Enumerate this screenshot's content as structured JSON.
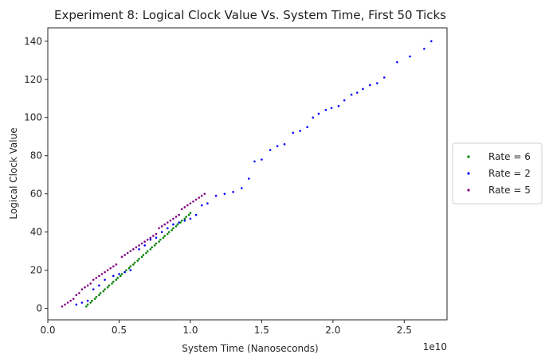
{
  "chart_data": {
    "type": "scatter",
    "title": "Experiment 8: Logical Clock Value Vs. System Time, First 50 Ticks",
    "xlabel": "System Time (Nanoseconds)",
    "ylabel": "Logical Clock Value",
    "x_offset_label": "1e10",
    "xlim": [
      0.0,
      2.8
    ],
    "ylim": [
      -6,
      147
    ],
    "x_ticks": [
      0.0,
      0.5,
      1.0,
      1.5,
      2.0,
      2.5
    ],
    "x_tick_labels": [
      "0.0",
      "0.5",
      "1.0",
      "1.5",
      "2.0",
      "2.5"
    ],
    "y_ticks": [
      0,
      20,
      40,
      60,
      80,
      100,
      120,
      140
    ],
    "y_tick_labels": [
      "0",
      "20",
      "40",
      "60",
      "80",
      "100",
      "120",
      "140"
    ],
    "grid": false,
    "legend_placement": "right, outside plot",
    "series": [
      {
        "name": "Rate = 6",
        "color": "#008000",
        "points": [
          [
            0.27,
            1
          ],
          [
            0.28,
            2
          ],
          [
            0.3,
            3
          ],
          [
            0.31,
            4
          ],
          [
            0.33,
            5
          ],
          [
            0.34,
            6
          ],
          [
            0.36,
            7
          ],
          [
            0.37,
            8
          ],
          [
            0.39,
            9
          ],
          [
            0.4,
            10
          ],
          [
            0.42,
            11
          ],
          [
            0.43,
            12
          ],
          [
            0.45,
            13
          ],
          [
            0.46,
            14
          ],
          [
            0.48,
            15
          ],
          [
            0.49,
            16
          ],
          [
            0.51,
            17
          ],
          [
            0.52,
            18
          ],
          [
            0.54,
            19
          ],
          [
            0.55,
            20
          ],
          [
            0.57,
            21
          ],
          [
            0.58,
            22
          ],
          [
            0.6,
            23
          ],
          [
            0.61,
            24
          ],
          [
            0.63,
            25
          ],
          [
            0.64,
            26
          ],
          [
            0.66,
            27
          ],
          [
            0.67,
            28
          ],
          [
            0.69,
            29
          ],
          [
            0.7,
            30
          ],
          [
            0.72,
            31
          ],
          [
            0.73,
            32
          ],
          [
            0.75,
            33
          ],
          [
            0.76,
            34
          ],
          [
            0.78,
            35
          ],
          [
            0.79,
            36
          ],
          [
            0.81,
            37
          ],
          [
            0.82,
            38
          ],
          [
            0.84,
            39
          ],
          [
            0.85,
            40
          ],
          [
            0.87,
            41
          ],
          [
            0.88,
            42
          ],
          [
            0.9,
            43
          ],
          [
            0.91,
            44
          ],
          [
            0.93,
            45
          ],
          [
            0.94,
            46
          ],
          [
            0.96,
            47
          ],
          [
            0.97,
            48
          ],
          [
            0.99,
            49
          ],
          [
            1.0,
            50
          ]
        ]
      },
      {
        "name": "Rate = 2",
        "color": "#0000ff",
        "points": [
          [
            0.2,
            2
          ],
          [
            0.24,
            3
          ],
          [
            0.28,
            4
          ],
          [
            0.32,
            10
          ],
          [
            0.36,
            12
          ],
          [
            0.4,
            15
          ],
          [
            0.46,
            17
          ],
          [
            0.5,
            18
          ],
          [
            0.54,
            19
          ],
          [
            0.58,
            20
          ],
          [
            0.64,
            31
          ],
          [
            0.68,
            33
          ],
          [
            0.72,
            36
          ],
          [
            0.76,
            37
          ],
          [
            0.8,
            40
          ],
          [
            0.84,
            42
          ],
          [
            0.88,
            44
          ],
          [
            0.92,
            45
          ],
          [
            0.96,
            46
          ],
          [
            1.0,
            47
          ],
          [
            1.04,
            49
          ],
          [
            1.08,
            54
          ],
          [
            1.12,
            55
          ],
          [
            1.18,
            59
          ],
          [
            1.24,
            60
          ],
          [
            1.3,
            61
          ],
          [
            1.36,
            63
          ],
          [
            1.41,
            68
          ],
          [
            1.45,
            77
          ],
          [
            1.5,
            78
          ],
          [
            1.56,
            83
          ],
          [
            1.61,
            85
          ],
          [
            1.66,
            86
          ],
          [
            1.72,
            92
          ],
          [
            1.77,
            93
          ],
          [
            1.82,
            95
          ],
          [
            1.86,
            100
          ],
          [
            1.9,
            102
          ],
          [
            1.95,
            104
          ],
          [
            1.99,
            105
          ],
          [
            2.04,
            106
          ],
          [
            2.08,
            109
          ],
          [
            2.13,
            112
          ],
          [
            2.17,
            113
          ],
          [
            2.21,
            115
          ],
          [
            2.26,
            117
          ],
          [
            2.31,
            118
          ],
          [
            2.36,
            121
          ],
          [
            2.45,
            129
          ],
          [
            2.54,
            132
          ],
          [
            2.64,
            136
          ],
          [
            2.69,
            140
          ]
        ]
      },
      {
        "name": "Rate = 5",
        "color": "#800080",
        "points": [
          [
            0.1,
            1
          ],
          [
            0.12,
            2
          ],
          [
            0.14,
            3
          ],
          [
            0.16,
            4
          ],
          [
            0.18,
            5
          ],
          [
            0.2,
            7
          ],
          [
            0.22,
            8
          ],
          [
            0.24,
            10
          ],
          [
            0.26,
            11
          ],
          [
            0.28,
            12
          ],
          [
            0.3,
            13
          ],
          [
            0.32,
            15
          ],
          [
            0.34,
            16
          ],
          [
            0.36,
            17
          ],
          [
            0.38,
            18
          ],
          [
            0.4,
            19
          ],
          [
            0.42,
            20
          ],
          [
            0.44,
            21
          ],
          [
            0.46,
            22
          ],
          [
            0.48,
            23
          ],
          [
            0.52,
            27
          ],
          [
            0.54,
            28
          ],
          [
            0.56,
            29
          ],
          [
            0.58,
            30
          ],
          [
            0.6,
            31
          ],
          [
            0.62,
            32
          ],
          [
            0.64,
            33
          ],
          [
            0.66,
            34
          ],
          [
            0.68,
            35
          ],
          [
            0.7,
            36
          ],
          [
            0.72,
            37
          ],
          [
            0.74,
            38
          ],
          [
            0.76,
            39
          ],
          [
            0.78,
            42
          ],
          [
            0.8,
            43
          ],
          [
            0.82,
            44
          ],
          [
            0.84,
            45
          ],
          [
            0.86,
            46
          ],
          [
            0.88,
            47
          ],
          [
            0.9,
            48
          ],
          [
            0.92,
            49
          ],
          [
            0.94,
            52
          ],
          [
            0.96,
            53
          ],
          [
            0.98,
            54
          ],
          [
            1.0,
            55
          ],
          [
            1.02,
            56
          ],
          [
            1.04,
            57
          ],
          [
            1.06,
            58
          ],
          [
            1.08,
            59
          ],
          [
            1.1,
            60
          ]
        ]
      }
    ]
  }
}
